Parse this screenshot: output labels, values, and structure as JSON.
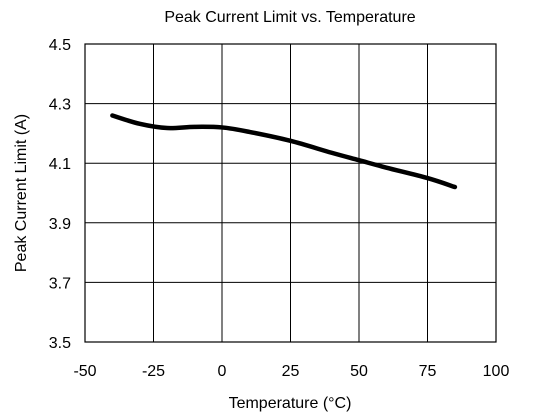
{
  "chart_data": {
    "type": "line",
    "title": "Peak Current Limit vs. Temperature",
    "xlabel": "Temperature (°C)",
    "ylabel": "Peak Current Limit (A)",
    "xlim": [
      -50,
      100
    ],
    "ylim": [
      3.5,
      4.5
    ],
    "xticks": [
      -50,
      -25,
      0,
      25,
      50,
      75,
      100
    ],
    "yticks": [
      3.5,
      3.7,
      3.9,
      4.1,
      4.3,
      4.5
    ],
    "xtick_labels": [
      "-50",
      "-25",
      "0",
      "25",
      "50",
      "75",
      "100"
    ],
    "ytick_labels": [
      "3.5",
      "3.7",
      "3.9",
      "4.1",
      "4.3",
      "4.5"
    ],
    "grid": true,
    "series": [
      {
        "x": [
          -40,
          -30,
          -20,
          -10,
          0,
          10,
          25,
          40,
          50,
          60,
          75,
          85
        ],
        "y": [
          4.26,
          4.232,
          4.218,
          4.222,
          4.22,
          4.205,
          4.175,
          4.135,
          4.11,
          4.085,
          4.05,
          4.02
        ]
      }
    ]
  }
}
